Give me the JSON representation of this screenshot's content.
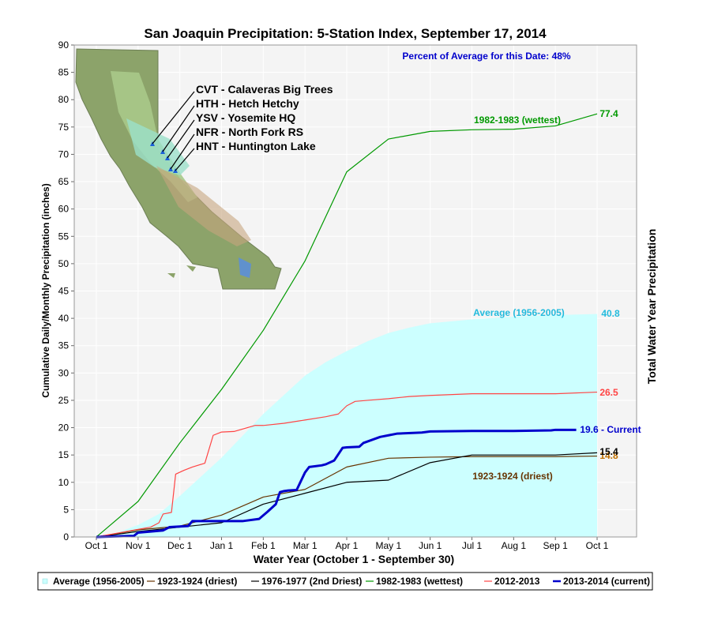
{
  "chart_data": {
    "type": "line",
    "title": "San Joaquin Precipitation: 5-Station Index, September 17, 2014",
    "xlabel": "Water Year (October 1 - September 30)",
    "ylabel": "Cumulative Daily/Monthly Precipitation (inches)",
    "ylabel_right": "Total Water Year Precipitation",
    "ylim": [
      0,
      90
    ],
    "yticks": [
      0,
      5,
      10,
      15,
      20,
      25,
      30,
      35,
      40,
      45,
      50,
      55,
      60,
      65,
      70,
      75,
      80,
      85,
      90
    ],
    "x_tick_labels": [
      "Oct 1",
      "Nov 1",
      "Dec 1",
      "Jan 1",
      "Feb 1",
      "Mar 1",
      "Apr 1",
      "May 1",
      "Jun 1",
      "Jul 1",
      "Aug 1",
      "Sep 1",
      "Oct 1"
    ],
    "grid": true,
    "legend_position": "bottom",
    "percent_note": "Percent of Average for this Date: 48%",
    "stations": [
      "CVT - Calaveras Big Trees",
      "HTH - Hetch Hetchy",
      "YSV - Yosemite HQ",
      "NFR - North Fork RS",
      "HNT - Huntington Lake"
    ],
    "series": [
      {
        "name": "Average (1956-2005)",
        "style": "area",
        "color": "#ccffff",
        "label": "Average (1956-2005)",
        "total_label": "40.8",
        "x": [
          0,
          0.5,
          1,
          1.5,
          2,
          2.5,
          3,
          3.5,
          4,
          4.5,
          5,
          5.5,
          6,
          6.5,
          7,
          7.5,
          8,
          9,
          10,
          11,
          12
        ],
        "y": [
          0,
          0.8,
          2.2,
          4.2,
          7.5,
          11.0,
          14.5,
          18.5,
          22.5,
          26.0,
          29.5,
          32.0,
          34.0,
          35.8,
          37.3,
          38.3,
          39.1,
          39.8,
          40.3,
          40.6,
          40.8
        ]
      },
      {
        "name": "1923-1924 (driest)",
        "style": "line",
        "color": "#663300",
        "label": "1923-1924 (driest)",
        "total_label": "14.8",
        "x": [
          0,
          1,
          2,
          3,
          4,
          5,
          6,
          7,
          8,
          9,
          10,
          11,
          12
        ],
        "y": [
          0,
          1.3,
          2.0,
          4.0,
          7.3,
          8.7,
          12.8,
          14.4,
          14.6,
          14.7,
          14.7,
          14.7,
          14.8
        ]
      },
      {
        "name": "1976-1977 (2nd Driest)",
        "style": "line",
        "color": "#000000",
        "label": "",
        "total_label": "15.4",
        "x": [
          0,
          1,
          2,
          3,
          4,
          5,
          6,
          7,
          8,
          9,
          10,
          11,
          12
        ],
        "y": [
          0,
          1.0,
          1.8,
          2.6,
          6.0,
          8.0,
          10.0,
          10.4,
          13.6,
          15.0,
          15.0,
          15.0,
          15.4
        ]
      },
      {
        "name": "1982-1983 (wettest)",
        "style": "line",
        "color": "#009900",
        "label": "1982-1983 (wettest)",
        "total_label": "77.4",
        "x": [
          0,
          1,
          2,
          3,
          4,
          5,
          6,
          7,
          8,
          9,
          10,
          11,
          12
        ],
        "y": [
          0,
          6.5,
          17.2,
          27.0,
          37.8,
          50.5,
          66.8,
          72.8,
          74.2,
          74.5,
          74.6,
          75.2,
          77.4
        ]
      },
      {
        "name": "2012-2013",
        "style": "line",
        "color": "#ff4444",
        "label": "",
        "total_label": "26.5",
        "x": [
          0,
          1,
          1.3,
          1.5,
          1.6,
          1.8,
          1.9,
          2.1,
          2.3,
          2.6,
          2.8,
          3.0,
          3.3,
          3.8,
          4.0,
          4.5,
          5.0,
          5.5,
          5.8,
          6.0,
          6.2,
          6.5,
          7.0,
          7.5,
          8.0,
          9.0,
          10.0,
          11.0,
          12.0
        ],
        "y": [
          0,
          1.4,
          1.8,
          2.6,
          4.2,
          4.5,
          11.5,
          12.2,
          12.8,
          13.5,
          18.6,
          19.2,
          19.3,
          20.4,
          20.4,
          20.8,
          21.4,
          22.0,
          22.5,
          24.0,
          24.8,
          25.0,
          25.3,
          25.7,
          25.9,
          26.2,
          26.2,
          26.2,
          26.5
        ]
      },
      {
        "name": "2013-2014 (current)",
        "style": "line-bold",
        "color": "#0000cc",
        "label": "19.6 - Current",
        "total_label": "",
        "x": [
          0,
          0.9,
          1.0,
          1.6,
          1.75,
          2.2,
          2.3,
          3.5,
          3.9,
          4.1,
          4.3,
          4.4,
          4.5,
          4.6,
          4.8,
          4.9,
          5.0,
          5.1,
          5.4,
          5.5,
          5.7,
          5.9,
          6.0,
          6.3,
          6.4,
          6.8,
          7.0,
          7.2,
          7.8,
          8.0,
          9.0,
          10.0,
          10.9,
          11.0,
          11.5
        ],
        "y": [
          0,
          0.2,
          0.8,
          1.2,
          1.8,
          2.0,
          2.9,
          2.9,
          3.3,
          4.6,
          6.0,
          8.2,
          8.4,
          8.5,
          8.6,
          10.2,
          11.8,
          12.8,
          13.1,
          13.3,
          14.0,
          16.3,
          16.4,
          16.5,
          17.2,
          18.3,
          18.6,
          18.9,
          19.1,
          19.3,
          19.4,
          19.4,
          19.5,
          19.6,
          19.6
        ]
      }
    ]
  },
  "colors": {
    "plot_background": "#f4f4f4",
    "grid": "#ffffff",
    "percent_note": "#0000cc",
    "legend_border": "#000000"
  }
}
